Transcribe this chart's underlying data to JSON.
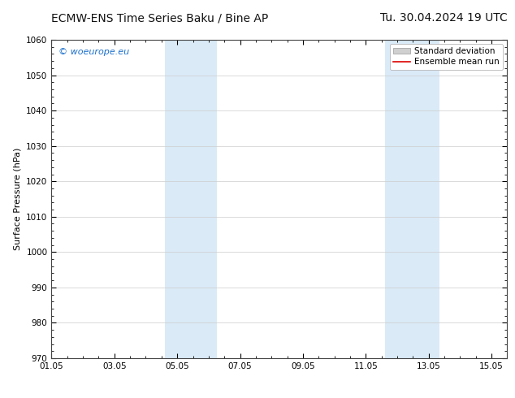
{
  "title_left": "ECMW-ENS Time Series Baku / Bine AP",
  "title_right": "Tu. 30.04.2024 19 UTC",
  "ylabel": "Surface Pressure (hPa)",
  "ylim": [
    970,
    1060
  ],
  "yticks": [
    970,
    980,
    990,
    1000,
    1010,
    1020,
    1030,
    1040,
    1050,
    1060
  ],
  "xlim_start": 0,
  "xlim_end": 14.5,
  "xtick_labels": [
    "01.05",
    "03.05",
    "05.05",
    "07.05",
    "09.05",
    "11.05",
    "13.05",
    "15.05"
  ],
  "xtick_positions": [
    0,
    2,
    4,
    6,
    8,
    10,
    12,
    14
  ],
  "shaded_bands": [
    {
      "x_start": 3.6,
      "x_end": 5.25,
      "color": "#daeaf7"
    },
    {
      "x_start": 10.6,
      "x_end": 12.35,
      "color": "#daeaf7"
    }
  ],
  "watermark_text": "© woeurope.eu",
  "watermark_color": "#1a6fcc",
  "legend_std_label": "Standard deviation",
  "legend_mean_label": "Ensemble mean run",
  "legend_std_color": "#d0d0d0",
  "legend_mean_color": "#dd0000",
  "background_color": "#ffffff",
  "axes_background": "#ffffff",
  "grid_color": "#cccccc",
  "title_fontsize": 10,
  "axis_label_fontsize": 8,
  "tick_fontsize": 7.5,
  "watermark_fontsize": 8
}
